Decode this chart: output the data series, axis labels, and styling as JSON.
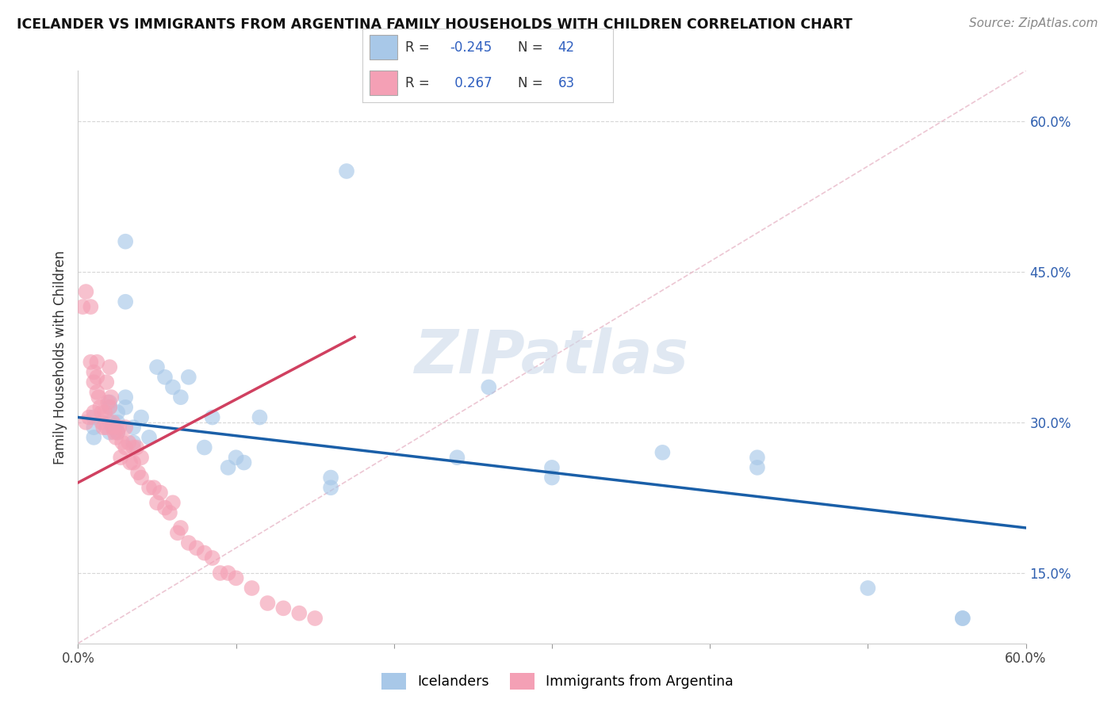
{
  "title": "ICELANDER VS IMMIGRANTS FROM ARGENTINA FAMILY HOUSEHOLDS WITH CHILDREN CORRELATION CHART",
  "source": "Source: ZipAtlas.com",
  "ylabel": "Family Households with Children",
  "xlim": [
    0.0,
    0.6
  ],
  "ylim": [
    0.08,
    0.65
  ],
  "xtick_positions": [
    0.0,
    0.1,
    0.2,
    0.3,
    0.4,
    0.5,
    0.6
  ],
  "xtick_labels": [
    "0.0%",
    "",
    "",
    "",
    "",
    "",
    "60.0%"
  ],
  "ytick_positions": [
    0.15,
    0.3,
    0.45,
    0.6
  ],
  "ytick_labels": [
    "15.0%",
    "30.0%",
    "45.0%",
    "60.0%"
  ],
  "color_blue": "#a8c8e8",
  "color_pink": "#f4a0b5",
  "line_blue": "#1a5fa8",
  "line_pink": "#d04060",
  "line_diag": "#e0b0c0",
  "watermark_color": "#ccdaea",
  "background_color": "#ffffff",
  "icelanders_x": [
    0.17,
    0.03,
    0.03,
    0.01,
    0.01,
    0.01,
    0.02,
    0.02,
    0.02,
    0.02,
    0.025,
    0.025,
    0.025,
    0.03,
    0.03,
    0.035,
    0.035,
    0.04,
    0.045,
    0.05,
    0.055,
    0.06,
    0.065,
    0.07,
    0.08,
    0.085,
    0.095,
    0.1,
    0.105,
    0.115,
    0.16,
    0.16,
    0.24,
    0.26,
    0.3,
    0.3,
    0.37,
    0.43,
    0.43,
    0.5,
    0.56,
    0.56
  ],
  "icelanders_y": [
    0.55,
    0.48,
    0.42,
    0.305,
    0.295,
    0.285,
    0.32,
    0.315,
    0.3,
    0.29,
    0.31,
    0.3,
    0.29,
    0.325,
    0.315,
    0.295,
    0.28,
    0.305,
    0.285,
    0.355,
    0.345,
    0.335,
    0.325,
    0.345,
    0.275,
    0.305,
    0.255,
    0.265,
    0.26,
    0.305,
    0.245,
    0.235,
    0.265,
    0.335,
    0.255,
    0.245,
    0.27,
    0.265,
    0.255,
    0.135,
    0.105,
    0.105
  ],
  "argentina_x": [
    0.003,
    0.005,
    0.005,
    0.007,
    0.008,
    0.008,
    0.01,
    0.01,
    0.01,
    0.012,
    0.012,
    0.012,
    0.013,
    0.014,
    0.015,
    0.015,
    0.016,
    0.017,
    0.018,
    0.018,
    0.019,
    0.02,
    0.02,
    0.021,
    0.022,
    0.022,
    0.023,
    0.024,
    0.025,
    0.026,
    0.027,
    0.028,
    0.03,
    0.03,
    0.032,
    0.033,
    0.035,
    0.035,
    0.037,
    0.038,
    0.04,
    0.04,
    0.045,
    0.048,
    0.05,
    0.052,
    0.055,
    0.058,
    0.06,
    0.063,
    0.065,
    0.07,
    0.075,
    0.08,
    0.085,
    0.09,
    0.095,
    0.1,
    0.11,
    0.12,
    0.13,
    0.14,
    0.15
  ],
  "argentina_y": [
    0.415,
    0.43,
    0.3,
    0.305,
    0.415,
    0.36,
    0.35,
    0.34,
    0.31,
    0.36,
    0.345,
    0.33,
    0.325,
    0.315,
    0.31,
    0.3,
    0.295,
    0.31,
    0.34,
    0.295,
    0.32,
    0.355,
    0.315,
    0.325,
    0.3,
    0.295,
    0.29,
    0.285,
    0.29,
    0.295,
    0.265,
    0.28,
    0.295,
    0.275,
    0.28,
    0.26,
    0.275,
    0.26,
    0.275,
    0.25,
    0.265,
    0.245,
    0.235,
    0.235,
    0.22,
    0.23,
    0.215,
    0.21,
    0.22,
    0.19,
    0.195,
    0.18,
    0.175,
    0.17,
    0.165,
    0.15,
    0.15,
    0.145,
    0.135,
    0.12,
    0.115,
    0.11,
    0.105
  ],
  "blue_line_x": [
    0.0,
    0.6
  ],
  "blue_line_y": [
    0.305,
    0.195
  ],
  "pink_line_x": [
    0.0,
    0.175
  ],
  "pink_line_y": [
    0.24,
    0.385
  ]
}
